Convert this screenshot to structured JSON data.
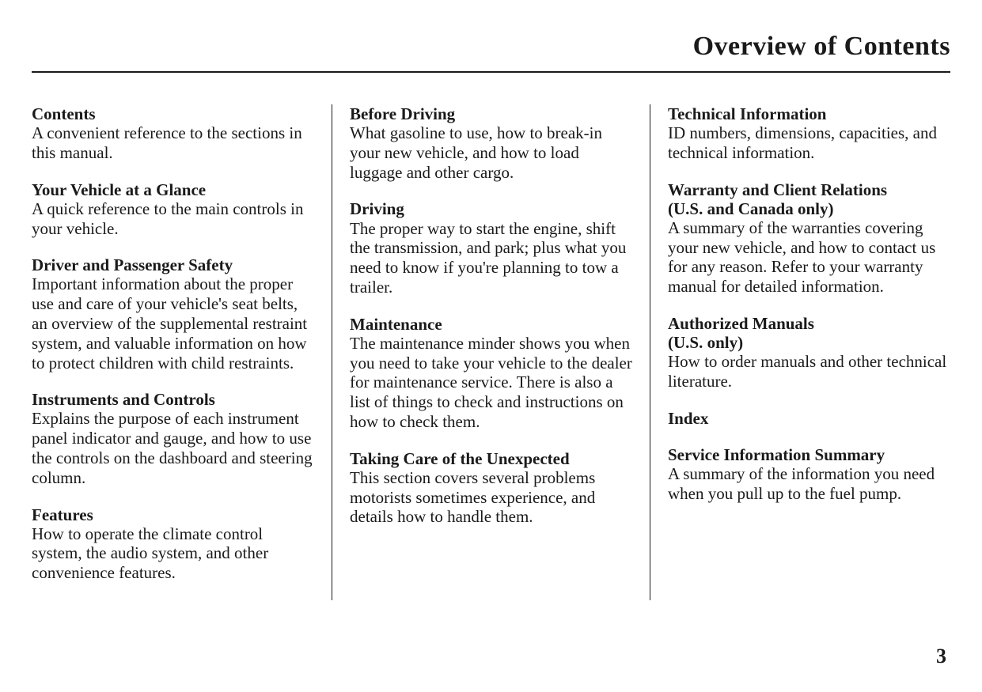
{
  "page": {
    "title": "Overview of Contents",
    "number": "3",
    "background_color": "#ffffff",
    "text_color": "#1a1a1a",
    "title_fontsize": 34,
    "body_fontsize": 21,
    "font_family": "Georgia, 'Times New Roman', serif"
  },
  "columns": [
    {
      "entries": [
        {
          "title": "Contents",
          "desc": "A convenient reference to the sections in this manual."
        },
        {
          "title": "Your Vehicle at a Glance",
          "desc": "A quick reference to the main controls in your vehicle."
        },
        {
          "title": "Driver and Passenger Safety",
          "desc": "Important information about the proper use and care of your vehicle's seat belts, an overview of the supplemental restraint system, and valuable information on how to protect children with child restraints."
        },
        {
          "title": "Instruments and Controls",
          "desc": "Explains the purpose of each instrument panel indicator and gauge, and how to use the controls on the dashboard and steering column."
        },
        {
          "title": "Features",
          "desc": "How to operate the climate control system, the audio system, and other convenience features."
        }
      ]
    },
    {
      "entries": [
        {
          "title": "Before Driving",
          "desc": "What gasoline to use, how to break-in your new vehicle, and how to load luggage and other cargo."
        },
        {
          "title": "Driving",
          "desc": "The proper way to start the engine, shift the transmission, and park; plus what you need to know if you're planning to tow a trailer."
        },
        {
          "title": "Maintenance",
          "desc": "The maintenance minder shows you when you need to take your vehicle to the dealer for maintenance service. There is also a list of things to check and instructions on how to check them."
        },
        {
          "title": "Taking Care of the Unexpected",
          "desc": "This section covers several problems motorists sometimes experience, and details how to handle them."
        }
      ]
    },
    {
      "entries": [
        {
          "title": "Technical Information",
          "desc": "ID numbers, dimensions, capacities, and technical information."
        },
        {
          "title": "Warranty and Client Relations",
          "subtitle": "(U.S. and Canada only)",
          "desc": "A summary of the warranties covering your new vehicle, and how to contact us for any reason. Refer to your warranty manual for detailed information."
        },
        {
          "title": "Authorized Manuals",
          "subtitle": "(U.S. only)",
          "desc": "How to order manuals and other technical literature."
        },
        {
          "title": "Index",
          "desc": ""
        },
        {
          "title": "Service Information Summary",
          "desc": "A summary of the information you need when you pull up to the fuel pump."
        }
      ]
    }
  ]
}
